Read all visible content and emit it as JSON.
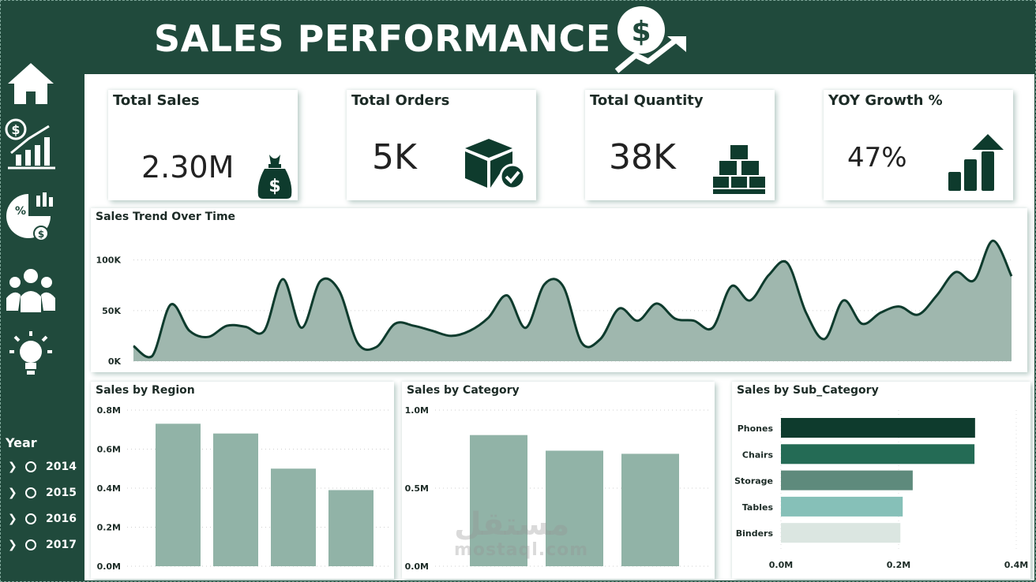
{
  "header": {
    "title": "SALES PERFORMANCE",
    "logo_icon": "dollar-growth-icon"
  },
  "sidebar": {
    "nav": [
      {
        "name": "home-icon"
      },
      {
        "name": "sales-growth-icon"
      },
      {
        "name": "analytics-pie-icon"
      },
      {
        "name": "customers-icon"
      },
      {
        "name": "insights-bulb-icon"
      }
    ],
    "year_label": "Year",
    "years": [
      "2014",
      "2015",
      "2016",
      "2017"
    ]
  },
  "kpis": [
    {
      "title": "Total Sales",
      "value": "2.30M",
      "icon": "money-bag-icon"
    },
    {
      "title": "Total Orders",
      "value": "5K",
      "icon": "box-check-icon"
    },
    {
      "title": "Total Quantity",
      "value": "38K",
      "icon": "stacked-boxes-icon"
    },
    {
      "title": "YOY Growth %",
      "value": "47%",
      "icon": "growth-bars-icon"
    }
  ],
  "colors": {
    "sidebar_bg": "#204a3c",
    "dark_green": "#0e3b2d",
    "area_fill": "#9fb7ae",
    "bar_fill": "#91b3a7",
    "sub_phones": "#0e3b2d",
    "sub_chairs": "#246b55",
    "sub_storage": "#5e8a7c",
    "sub_tables": "#86c0b8",
    "sub_binders": "#dbe6e1"
  },
  "watermark": {
    "arabic": "مستقل",
    "latin": "mostaql.com"
  },
  "chart_data": [
    {
      "type": "area",
      "title": "Sales Trend Over Time",
      "ylim": [
        0,
        120000
      ],
      "yticks": [
        "0K",
        "50K",
        "100K"
      ],
      "values": [
        15000,
        5000,
        56000,
        30000,
        24000,
        35000,
        34000,
        30000,
        81000,
        33000,
        79000,
        70000,
        18000,
        14000,
        37000,
        35000,
        30000,
        25000,
        30000,
        43000,
        65000,
        33000,
        76000,
        74000,
        18000,
        22000,
        52000,
        40000,
        57000,
        42000,
        40000,
        33000,
        74000,
        60000,
        85000,
        97000,
        48000,
        22000,
        60000,
        37000,
        48000,
        54000,
        46000,
        65000,
        88000,
        80000,
        119000,
        84000
      ]
    },
    {
      "type": "bar",
      "title": "Sales by Region",
      "categories": [
        "",
        "",
        "",
        ""
      ],
      "values": [
        730000,
        680000,
        500000,
        390000
      ],
      "ylim": [
        0,
        800000
      ],
      "yticks": [
        "0.0M",
        "0.2M",
        "0.4M",
        "0.6M",
        "0.8M"
      ]
    },
    {
      "type": "bar",
      "title": "Sales by Category",
      "categories": [
        "",
        "",
        ""
      ],
      "values": [
        840000,
        740000,
        720000
      ],
      "ylim": [
        0,
        1000000
      ],
      "yticks": [
        "0.0M",
        "0.5M",
        "1.0M"
      ]
    },
    {
      "type": "bar",
      "orientation": "horizontal",
      "title": "Sales by Sub_Category",
      "categories": [
        "Phones",
        "Chairs",
        "Storage",
        "Tables",
        "Binders"
      ],
      "values": [
        330000,
        329000,
        224000,
        207000,
        203000
      ],
      "xlim": [
        0,
        400000
      ],
      "xticks": [
        "0.0M",
        "0.2M",
        "0.4M"
      ]
    }
  ]
}
